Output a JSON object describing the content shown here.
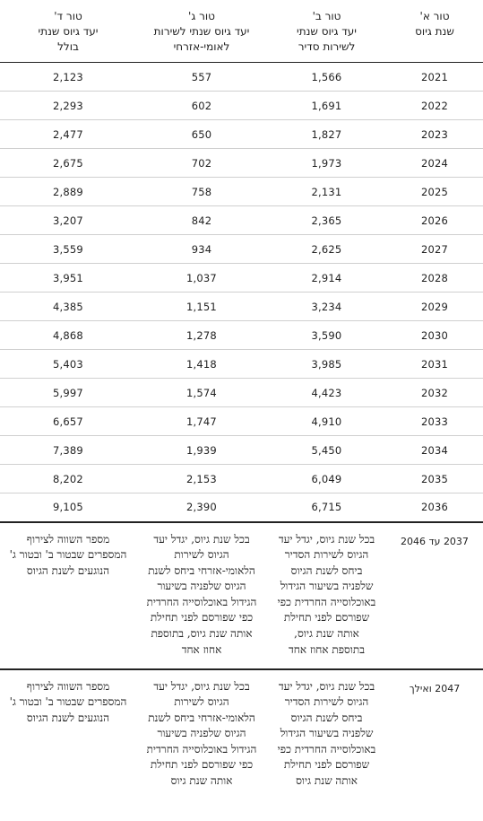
{
  "headers": {
    "col_a": [
      "טור א'",
      "שנת גיוס"
    ],
    "col_b": [
      "טור ב'",
      "יעד גיוס שנתי",
      "לשירות סדיר"
    ],
    "col_c": [
      "טור ג'",
      "יעד גיוס שנתי לשירות",
      "לאומי-אזרחי"
    ],
    "col_d": [
      "טור ד'",
      "יעד גיוס שנתי",
      "בולל"
    ]
  },
  "rows": [
    {
      "year": "2021",
      "regular": "1,566",
      "civic": "557",
      "total": "2,123"
    },
    {
      "year": "2022",
      "regular": "1,691",
      "civic": "602",
      "total": "2,293"
    },
    {
      "year": "2023",
      "regular": "1,827",
      "civic": "650",
      "total": "2,477"
    },
    {
      "year": "2024",
      "regular": "1,973",
      "civic": "702",
      "total": "2,675"
    },
    {
      "year": "2025",
      "regular": "2,131",
      "civic": "758",
      "total": "2,889"
    },
    {
      "year": "2026",
      "regular": "2,365",
      "civic": "842",
      "total": "3,207"
    },
    {
      "year": "2027",
      "regular": "2,625",
      "civic": "934",
      "total": "3,559"
    },
    {
      "year": "2028",
      "regular": "2,914",
      "civic": "1,037",
      "total": "3,951"
    },
    {
      "year": "2029",
      "regular": "3,234",
      "civic": "1,151",
      "total": "4,385"
    },
    {
      "year": "2030",
      "regular": "3,590",
      "civic": "1,278",
      "total": "4,868"
    },
    {
      "year": "2031",
      "regular": "3,985",
      "civic": "1,418",
      "total": "5,403"
    },
    {
      "year": "2032",
      "regular": "4,423",
      "civic": "1,574",
      "total": "5,997"
    },
    {
      "year": "2033",
      "regular": "4,910",
      "civic": "1,747",
      "total": "6,657"
    },
    {
      "year": "2034",
      "regular": "5,450",
      "civic": "1,939",
      "total": "7,389"
    },
    {
      "year": "2035",
      "regular": "6,049",
      "civic": "2,153",
      "total": "8,202"
    },
    {
      "year": "2036",
      "regular": "6,715",
      "civic": "2,390",
      "total": "9,105"
    }
  ],
  "rule_rows": [
    {
      "label": "2037 עד 2046",
      "regular": "בכל שנת גיוס, יגדל יעד הגיוס לשירות הסדיר ביחס לשנת הגיוס שלפניה בשיעור הגידול באוכלוסייה החרדית כפי שפורסם לפני תחילת אותה שנת גיוס, בתוספת אחוז אחד",
      "civic": "בכל שנת גיוס, יגדל יעד הגיוס לשירות הלאומי-אזרחי ביחס לשנת הגיוס שלפניה בשיעור הגידול באוכלוסייה החרדית כפי שפורסם לפני תחילת אותה שנת גיוס, בתוספת אחוז אחד",
      "total": "מספר השווה לצירוף המספרים שבטור ב' ובטור ג' הנוגעים לשנת הגיוס"
    },
    {
      "label": "2047 ואילך",
      "regular": "בכל שנת גיוס, יגדל יעד הגיוס לשירות הסדיר ביחס לשנת הגיוס שלפניה בשיעור הגידול באוכלוסייה החרדית כפי שפורסם לפני תחילת אותה שנת גיוס",
      "civic": "בכל שנת גיוס, יגדל יעד הגיוס לשירות הלאומי-אזרחי ביחס לשנת הגיוס שלפניה בשיעור הגידול באוכלוסייה החרדית כפי שפורסם לפני תחילת אותה שנת גיוס",
      "total": "מספר השווה לצירוף המספרים שבטור ב' ובטור ג' הנוגעים לשנת הגיוס"
    }
  ]
}
